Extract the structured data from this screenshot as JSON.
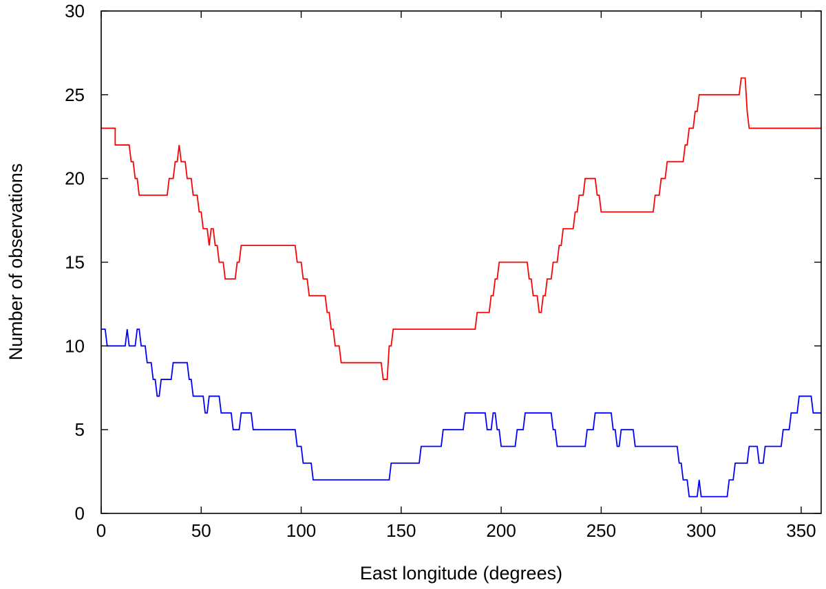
{
  "chart_data": {
    "type": "line",
    "title": "",
    "xlabel": "East longitude (degrees)",
    "ylabel": "Number of observations",
    "xlim": [
      0,
      360
    ],
    "ylim": [
      0,
      30
    ],
    "xticks": [
      0,
      50,
      100,
      150,
      200,
      250,
      300,
      350
    ],
    "yticks": [
      0,
      5,
      10,
      15,
      20,
      25,
      30
    ],
    "xtick_labels": [
      "0",
      "50",
      "100",
      "150",
      "200",
      "250",
      "300",
      "350"
    ],
    "ytick_labels": [
      "0",
      "5",
      "10",
      "15",
      "20",
      "25",
      "30"
    ],
    "grid": false,
    "legend": "none",
    "series": [
      {
        "color": "#ff0000",
        "points": [
          [
            0,
            23
          ],
          [
            7,
            23
          ],
          [
            7,
            22
          ],
          [
            14,
            22
          ],
          [
            14,
            22
          ],
          [
            15,
            21
          ],
          [
            16,
            21
          ],
          [
            17,
            20
          ],
          [
            18,
            20
          ],
          [
            19,
            19
          ],
          [
            33,
            19
          ],
          [
            34,
            20
          ],
          [
            36,
            20
          ],
          [
            37,
            21
          ],
          [
            38,
            21
          ],
          [
            39,
            22
          ],
          [
            40,
            21
          ],
          [
            42,
            21
          ],
          [
            43,
            20
          ],
          [
            45,
            20
          ],
          [
            46,
            19
          ],
          [
            48,
            19
          ],
          [
            49,
            18
          ],
          [
            50,
            18
          ],
          [
            51,
            17
          ],
          [
            53,
            17
          ],
          [
            54,
            16
          ],
          [
            55,
            17
          ],
          [
            56,
            17
          ],
          [
            57,
            16
          ],
          [
            58,
            16
          ],
          [
            59,
            15
          ],
          [
            61,
            15
          ],
          [
            62,
            14
          ],
          [
            67,
            14
          ],
          [
            68,
            15
          ],
          [
            69,
            15
          ],
          [
            70,
            16
          ],
          [
            97,
            16
          ],
          [
            98,
            15
          ],
          [
            100,
            15
          ],
          [
            101,
            14
          ],
          [
            103,
            14
          ],
          [
            104,
            13
          ],
          [
            112,
            13
          ],
          [
            113,
            12
          ],
          [
            114,
            12
          ],
          [
            115,
            11
          ],
          [
            116,
            11
          ],
          [
            117,
            10
          ],
          [
            119,
            10
          ],
          [
            120,
            9
          ],
          [
            140,
            9
          ],
          [
            141,
            8
          ],
          [
            143,
            8
          ],
          [
            144,
            10
          ],
          [
            145,
            10
          ],
          [
            146,
            11
          ],
          [
            187,
            11
          ],
          [
            188,
            12
          ],
          [
            194,
            12
          ],
          [
            195,
            13
          ],
          [
            196,
            13
          ],
          [
            197,
            14
          ],
          [
            198,
            14
          ],
          [
            199,
            15
          ],
          [
            213,
            15
          ],
          [
            214,
            14
          ],
          [
            215,
            14
          ],
          [
            216,
            13
          ],
          [
            218,
            13
          ],
          [
            219,
            12
          ],
          [
            220,
            12
          ],
          [
            221,
            13
          ],
          [
            222,
            13
          ],
          [
            223,
            14
          ],
          [
            225,
            14
          ],
          [
            226,
            15
          ],
          [
            228,
            15
          ],
          [
            229,
            16
          ],
          [
            230,
            16
          ],
          [
            231,
            17
          ],
          [
            236,
            17
          ],
          [
            237,
            18
          ],
          [
            238,
            18
          ],
          [
            239,
            19
          ],
          [
            241,
            19
          ],
          [
            242,
            20
          ],
          [
            247,
            20
          ],
          [
            248,
            19
          ],
          [
            249,
            19
          ],
          [
            250,
            18
          ],
          [
            276,
            18
          ],
          [
            277,
            19
          ],
          [
            279,
            19
          ],
          [
            280,
            20
          ],
          [
            282,
            20
          ],
          [
            283,
            21
          ],
          [
            291,
            21
          ],
          [
            292,
            22
          ],
          [
            293,
            22
          ],
          [
            294,
            23
          ],
          [
            296,
            23
          ],
          [
            297,
            24
          ],
          [
            298,
            24
          ],
          [
            299,
            25
          ],
          [
            319,
            25
          ],
          [
            320,
            26
          ],
          [
            322,
            26
          ],
          [
            323,
            24
          ],
          [
            324,
            23
          ],
          [
            360,
            23
          ]
        ]
      },
      {
        "color": "#0000ff",
        "points": [
          [
            0,
            11
          ],
          [
            2,
            11
          ],
          [
            3,
            10
          ],
          [
            12,
            10
          ],
          [
            13,
            11
          ],
          [
            14,
            10
          ],
          [
            17,
            10
          ],
          [
            18,
            11
          ],
          [
            19,
            11
          ],
          [
            20,
            10
          ],
          [
            22,
            10
          ],
          [
            23,
            9
          ],
          [
            25,
            9
          ],
          [
            26,
            8
          ],
          [
            27,
            8
          ],
          [
            28,
            7
          ],
          [
            29,
            7
          ],
          [
            30,
            8
          ],
          [
            35,
            8
          ],
          [
            36,
            9
          ],
          [
            43,
            9
          ],
          [
            44,
            8
          ],
          [
            45,
            8
          ],
          [
            46,
            7
          ],
          [
            51,
            7
          ],
          [
            52,
            6
          ],
          [
            53,
            6
          ],
          [
            54,
            7
          ],
          [
            59,
            7
          ],
          [
            60,
            6
          ],
          [
            65,
            6
          ],
          [
            66,
            5
          ],
          [
            69,
            5
          ],
          [
            70,
            6
          ],
          [
            75,
            6
          ],
          [
            76,
            5
          ],
          [
            97,
            5
          ],
          [
            98,
            4
          ],
          [
            100,
            4
          ],
          [
            101,
            3
          ],
          [
            105,
            3
          ],
          [
            106,
            2
          ],
          [
            144,
            2
          ],
          [
            145,
            3
          ],
          [
            159,
            3
          ],
          [
            160,
            4
          ],
          [
            170,
            4
          ],
          [
            171,
            5
          ],
          [
            181,
            5
          ],
          [
            182,
            6
          ],
          [
            192,
            6
          ],
          [
            193,
            5
          ],
          [
            195,
            5
          ],
          [
            196,
            6
          ],
          [
            197,
            6
          ],
          [
            198,
            5
          ],
          [
            199,
            5
          ],
          [
            200,
            4
          ],
          [
            207,
            4
          ],
          [
            208,
            5
          ],
          [
            211,
            5
          ],
          [
            212,
            6
          ],
          [
            225,
            6
          ],
          [
            226,
            5
          ],
          [
            227,
            5
          ],
          [
            228,
            4
          ],
          [
            242,
            4
          ],
          [
            243,
            5
          ],
          [
            246,
            5
          ],
          [
            247,
            6
          ],
          [
            255,
            6
          ],
          [
            256,
            5
          ],
          [
            257,
            5
          ],
          [
            258,
            4
          ],
          [
            259,
            4
          ],
          [
            260,
            5
          ],
          [
            266,
            5
          ],
          [
            267,
            4
          ],
          [
            288,
            4
          ],
          [
            289,
            3
          ],
          [
            290,
            3
          ],
          [
            291,
            2
          ],
          [
            293,
            2
          ],
          [
            294,
            1
          ],
          [
            298,
            1
          ],
          [
            299,
            2
          ],
          [
            300,
            1
          ],
          [
            313,
            1
          ],
          [
            314,
            2
          ],
          [
            316,
            2
          ],
          [
            317,
            3
          ],
          [
            323,
            3
          ],
          [
            324,
            4
          ],
          [
            328,
            4
          ],
          [
            329,
            3
          ],
          [
            331,
            3
          ],
          [
            332,
            4
          ],
          [
            340,
            4
          ],
          [
            341,
            5
          ],
          [
            344,
            5
          ],
          [
            345,
            6
          ],
          [
            348,
            6
          ],
          [
            349,
            7
          ],
          [
            354,
            7
          ],
          [
            355,
            7
          ],
          [
            356,
            6
          ],
          [
            360,
            6
          ]
        ]
      }
    ]
  }
}
